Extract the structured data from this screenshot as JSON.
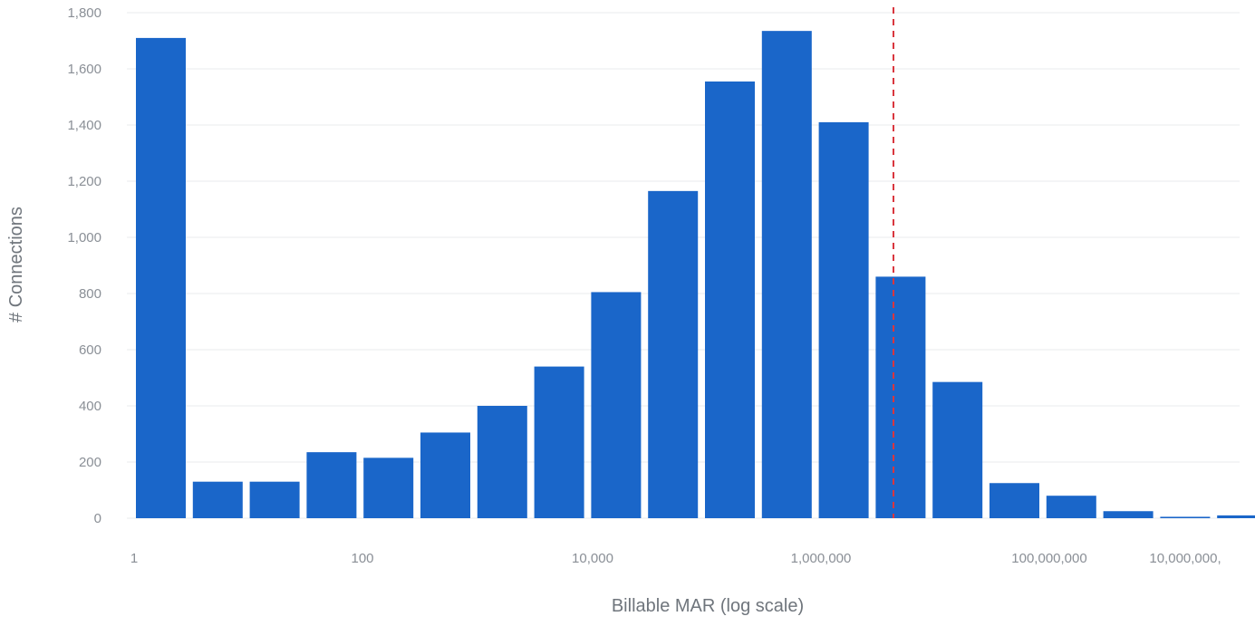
{
  "chart_data": {
    "type": "bar",
    "xlabel": "Billable MAR (log scale)",
    "ylabel": "# Connections",
    "x_scale": "log",
    "y_ticks": [
      0,
      200,
      400,
      600,
      800,
      1000,
      1200,
      1400,
      1600,
      1800
    ],
    "y_tick_labels": [
      "0",
      "200",
      "400",
      "600",
      "800",
      "1,000",
      "1,200",
      "1,400",
      "1,600",
      "1,800"
    ],
    "x_tick_labels": [
      "1",
      "100",
      "10,000",
      "1,000,000",
      "100,000,000",
      "10,000,000,"
    ],
    "ylim": [
      0,
      1800
    ],
    "grid": true,
    "bar_color": "#1a66c9",
    "reference_line": {
      "color": "#d9363e",
      "style": "dashed"
    },
    "values": [
      1710,
      130,
      130,
      235,
      215,
      305,
      400,
      540,
      805,
      1165,
      1555,
      1735,
      1410,
      860,
      485,
      125,
      80,
      25,
      5,
      10
    ]
  }
}
